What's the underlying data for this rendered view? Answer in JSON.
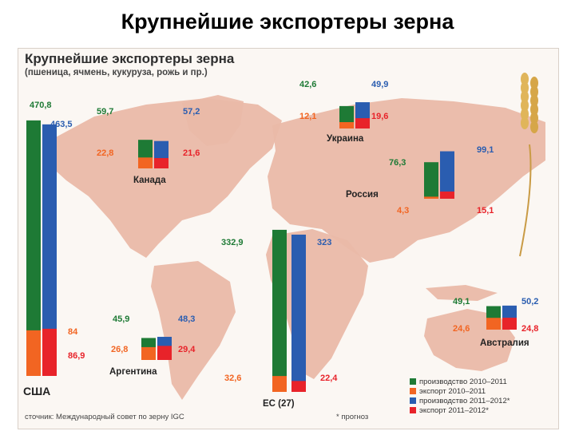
{
  "slide_title": "Крупнейшие экспортеры зерна",
  "infographic": {
    "title": "Крупнейшие экспортеры зерна",
    "subtitle": "(пшеница, ячмень, кукуруза, рожь и пр.)",
    "source": "сточник: Международный совет по зерну IGC",
    "footnote": "* прогноз"
  },
  "colors": {
    "production_2010_2011": "#1e7a35",
    "export_2010_2011": "#f26522",
    "production_2011_2012": "#2a5db0",
    "export_2011_2012": "#e8232a",
    "map_land": "#eab9a8"
  },
  "chart_data": {
    "type": "bar",
    "title": "Крупнейшие экспортеры зерна",
    "subtitle": "(пшеница, ячмень, кукуруза, рожь и пр.)",
    "series": [
      {
        "name": "производство 2010–2011",
        "kind": "production",
        "period": "2010-2011"
      },
      {
        "name": "экспорт 2010–2011",
        "kind": "export",
        "period": "2010-2011"
      },
      {
        "name": "производство 2011–2012*",
        "kind": "production",
        "period": "2011-2012"
      },
      {
        "name": "экспорт 2011–2012*",
        "kind": "export",
        "period": "2011-2012"
      }
    ],
    "categories": [
      "США",
      "Канада",
      "Украина",
      "Россия",
      "ЕС (27)",
      "Аргентина",
      "Австралия"
    ],
    "countries": [
      {
        "name": "США",
        "production_2010_2011": 470.8,
        "export_2010_2011": 84,
        "production_2011_2012": 463.5,
        "export_2011_2012": 86.9,
        "labels": {
          "p1": "470,8",
          "e1": "84",
          "p2": "463,5",
          "e2": "86,9"
        }
      },
      {
        "name": "Канада",
        "production_2010_2011": 59.7,
        "export_2010_2011": 22.8,
        "production_2011_2012": 57.2,
        "export_2011_2012": 21.6,
        "labels": {
          "p1": "59,7",
          "e1": "22,8",
          "p2": "57,2",
          "e2": "21,6"
        }
      },
      {
        "name": "Украина",
        "production_2010_2011": 42.6,
        "export_2010_2011": 12.1,
        "production_2011_2012": 49.9,
        "export_2011_2012": 19.6,
        "labels": {
          "p1": "42,6",
          "e1": "12,1",
          "p2": "49,9",
          "e2": "19,6"
        }
      },
      {
        "name": "Россия",
        "production_2010_2011": 76.3,
        "export_2010_2011": 4.3,
        "production_2011_2012": 99.1,
        "export_2011_2012": 15.1,
        "labels": {
          "p1": "76,3",
          "e1": "4,3",
          "p2": "99,1",
          "e2": "15,1"
        }
      },
      {
        "name": "ЕС (27)",
        "production_2010_2011": 332.9,
        "export_2010_2011": 32.6,
        "production_2011_2012": 323,
        "export_2011_2012": 22.4,
        "labels": {
          "p1": "332,9",
          "e1": "32,6",
          "p2": "323",
          "e2": "22,4"
        }
      },
      {
        "name": "Аргентина",
        "production_2010_2011": 45.9,
        "export_2010_2011": 26.8,
        "production_2011_2012": 48.3,
        "export_2011_2012": 29.4,
        "labels": {
          "p1": "45,9",
          "e1": "26,8",
          "p2": "48,3",
          "e2": "29,4"
        }
      },
      {
        "name": "Австралия",
        "production_2010_2011": 49.1,
        "export_2010_2011": 24.6,
        "production_2011_2012": 50.2,
        "export_2011_2012": 24.8,
        "labels": {
          "p1": "49,1",
          "e1": "24,6",
          "p2": "50,2",
          "e2": "24,8"
        }
      }
    ],
    "legend_position": "bottom-right",
    "grid": false
  }
}
